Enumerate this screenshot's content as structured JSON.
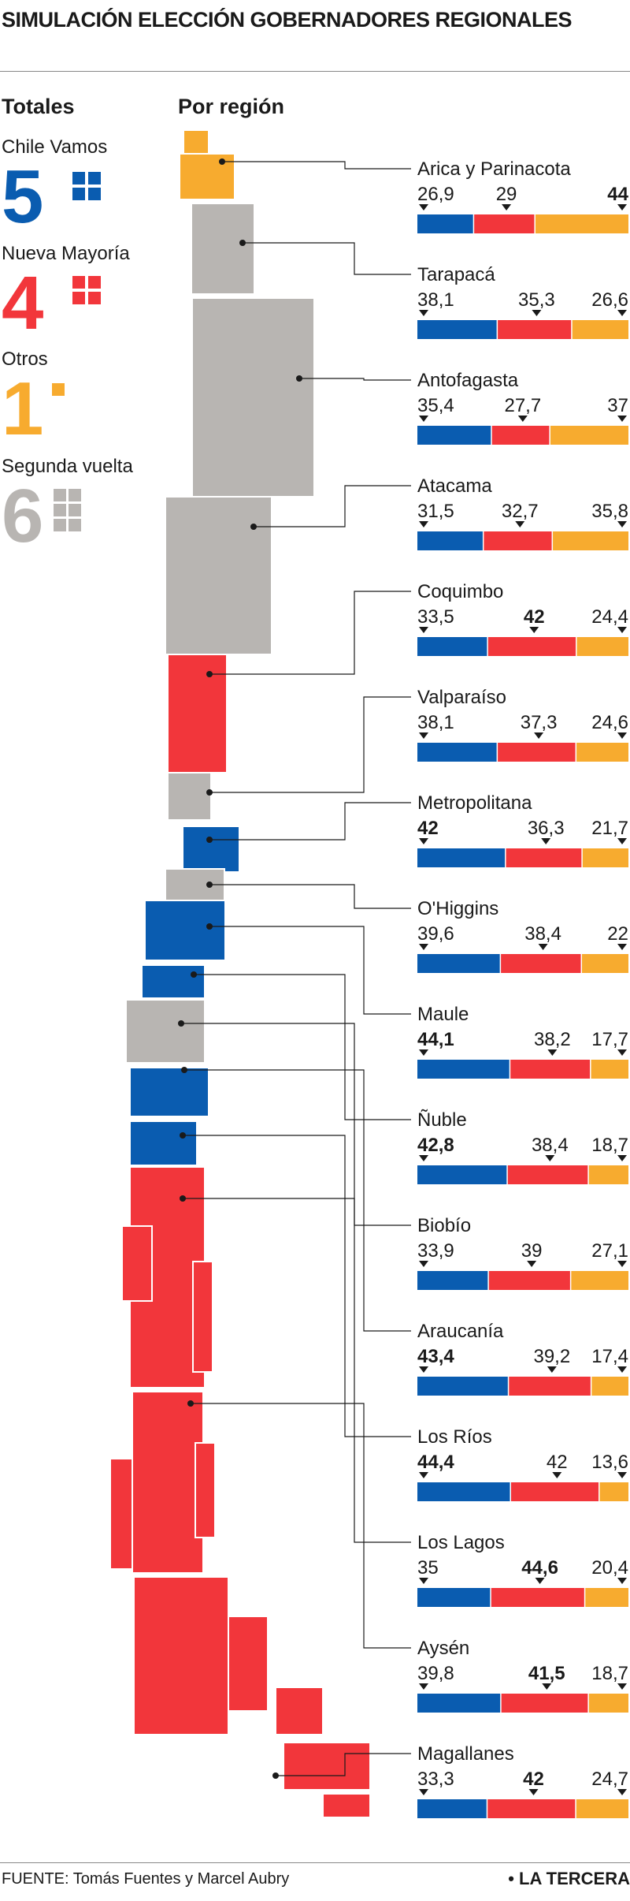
{
  "title": "SIMULACIÓN ELECCIÓN GOBERNADORES REGIONALES",
  "headers": {
    "totals": "Totales",
    "by_region": "Por región"
  },
  "colors": {
    "chile_vamos": "#0a5cb0",
    "nueva_mayoria": "#f2363b",
    "otros": "#f7ab2f",
    "segunda_vuelta": "#b8b5b2"
  },
  "totals": [
    {
      "label": "Chile Vamos",
      "count": "5",
      "color": "#0a5cb0"
    },
    {
      "label": "Nueva Mayoría",
      "count": "4",
      "color": "#f2363b"
    },
    {
      "label": "Otros",
      "count": "1",
      "color": "#f7ab2f"
    },
    {
      "label": "Segunda vuelta",
      "count": "6",
      "color": "#b8b5b2"
    }
  ],
  "chart_data": {
    "type": "bar",
    "stacked": true,
    "categories": [
      "Arica y Parinacota",
      "Tarapacá",
      "Antofagasta",
      "Atacama",
      "Coquimbo",
      "Valparaíso",
      "Metropolitana",
      "O'Higgins",
      "Maule",
      "Ñuble",
      "Biobío",
      "Araucanía",
      "Los Ríos",
      "Los Lagos",
      "Aysén",
      "Magallanes"
    ],
    "series": [
      {
        "color": "#0a5cb0",
        "values": [
          26.9,
          38.1,
          35.4,
          31.5,
          33.5,
          38.1,
          42,
          39.6,
          44.1,
          42.8,
          33.9,
          43.4,
          44.4,
          35,
          39.8,
          33.3
        ],
        "labels": [
          "26,9",
          "38,1",
          "35,4",
          "31,5",
          "33,5",
          "38,1",
          "42",
          "39,6",
          "44,1",
          "42,8",
          "33,9",
          "43,4",
          "44,4",
          "35",
          "39,8",
          "33,3"
        ]
      },
      {
        "color": "#f2363b",
        "values": [
          29,
          35.3,
          27.7,
          32.7,
          42,
          37.3,
          36.3,
          38.4,
          38.2,
          38.4,
          39,
          39.2,
          42,
          44.6,
          41.5,
          42
        ],
        "labels": [
          "29",
          "35,3",
          "27,7",
          "32,7",
          "42",
          "37,3",
          "36,3",
          "38,4",
          "38,2",
          "38,4",
          "39",
          "39,2",
          "42",
          "44,6",
          "41,5",
          "42"
        ]
      },
      {
        "color": "#f7ab2f",
        "values": [
          44,
          26.6,
          37,
          35.8,
          24.4,
          24.6,
          21.7,
          22,
          17.7,
          18.7,
          27.1,
          17.4,
          13.6,
          20.4,
          18.7,
          24.7
        ],
        "labels": [
          "44",
          "26,6",
          "37",
          "35,8",
          "24,4",
          "24,6",
          "21,7",
          "22",
          "17,7",
          "18,7",
          "27,1",
          "17,4",
          "13,6",
          "20,4",
          "18,7",
          "24,7"
        ]
      }
    ],
    "winner_color": [
      "#f7ab2f",
      "#b8b5b2",
      "#b8b5b2",
      "#b8b5b2",
      "#f2363b",
      "#b8b5b2",
      "#0a5cb0",
      "#b8b5b2",
      "#0a5cb0",
      "#0a5cb0",
      "#b8b5b2",
      "#0a5cb0",
      "#0a5cb0",
      "#f2363b",
      "#f2363b",
      "#f2363b"
    ]
  },
  "footer": {
    "source": "FUENTE: Tomás Fuentes y Marcel Aubry",
    "brand": "• LA TERCERA"
  }
}
